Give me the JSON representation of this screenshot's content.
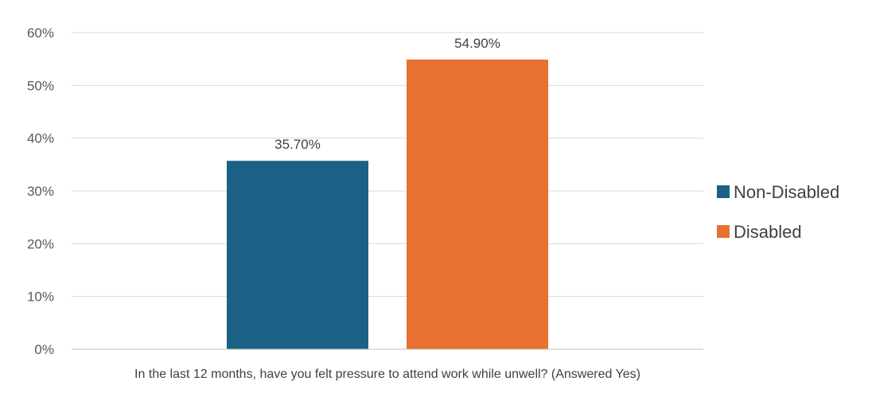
{
  "chart_data": {
    "type": "bar",
    "categories": [
      "In the last 12 months, have you felt pressure to attend work while unwell? (Answered Yes)"
    ],
    "series": [
      {
        "name": "Non-Disabled",
        "values": [
          35.7
        ],
        "label": "35.70%",
        "color": "#1a6185"
      },
      {
        "name": "Disabled",
        "values": [
          54.9
        ],
        "label": "54.90%",
        "color": "#e87131"
      }
    ],
    "ylim": [
      0,
      60
    ],
    "yticks": [
      0,
      10,
      20,
      30,
      40,
      50,
      60
    ],
    "ytick_labels": [
      "0%",
      "10%",
      "20%",
      "30%",
      "40%",
      "50%",
      "60%"
    ],
    "grid": true,
    "legend_position": "right",
    "title": "",
    "xlabel": "",
    "ylabel": ""
  }
}
